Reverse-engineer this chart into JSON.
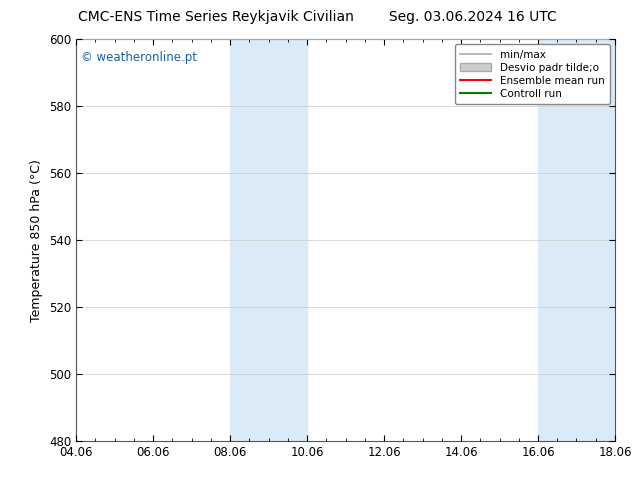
{
  "title": "CMC-ENS Time Series Reykjavik Civilian        Seg. 03.06.2024 16 UTC",
  "ylabel": "Temperature 850 hPa (°C)",
  "ylim": [
    480,
    600
  ],
  "yticks": [
    480,
    500,
    520,
    540,
    560,
    580,
    600
  ],
  "xtick_labels": [
    "04.06",
    "06.06",
    "08.06",
    "10.06",
    "12.06",
    "14.06",
    "16.06",
    "18.06"
  ],
  "xtick_positions": [
    0,
    2,
    4,
    6,
    8,
    10,
    12,
    14
  ],
  "x_start": 0,
  "x_end": 14,
  "shaded_bands": [
    {
      "x_start": 4,
      "x_end": 6,
      "color": "#daeaf6"
    },
    {
      "x_start": 12,
      "x_end": 14,
      "color": "#daeaf6"
    }
  ],
  "watermark_text": "© weatheronline.pt",
  "watermark_color": "#1a5fac",
  "legend_entries": [
    {
      "label": "min/max",
      "type": "line",
      "color": "#aaaaaa",
      "linewidth": 1.2
    },
    {
      "label": "Desvio padr tilde;o",
      "type": "patch",
      "facecolor": "#cccccc",
      "edgecolor": "#aaaaaa"
    },
    {
      "label": "Ensemble mean run",
      "type": "line",
      "color": "#ff0000",
      "linewidth": 1.5
    },
    {
      "label": "Controll run",
      "type": "line",
      "color": "#008000",
      "linewidth": 1.5
    }
  ],
  "background_color": "#ffffff",
  "grid_color": "#cccccc",
  "title_fontsize": 10,
  "axis_label_fontsize": 9,
  "tick_fontsize": 8.5,
  "watermark_fontsize": 8.5,
  "legend_fontsize": 7.5
}
